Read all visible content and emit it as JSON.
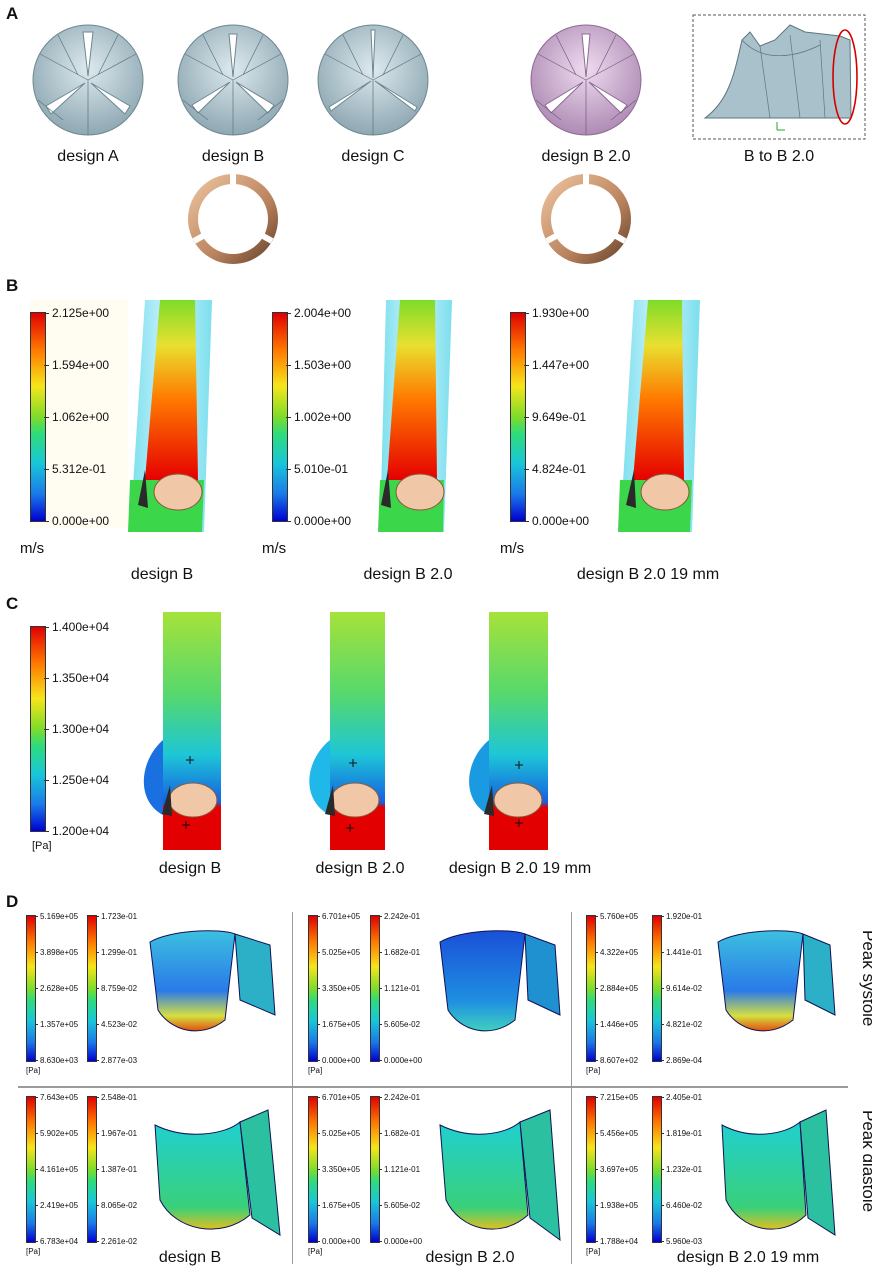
{
  "panel_a": {
    "letter": "A",
    "designs": [
      "design A",
      "design B",
      "design C",
      "design B 2.0",
      "B to B 2.0"
    ]
  },
  "panel_b": {
    "letter": "B",
    "unit": "m/s",
    "scales": [
      [
        "2.125e+00",
        "1.594e+00",
        "1.062e+00",
        "5.312e-01",
        "0.000e+00"
      ],
      [
        "2.004e+00",
        "1.503e+00",
        "1.002e+00",
        "5.010e-01",
        "0.000e+00"
      ],
      [
        "1.930e+00",
        "1.447e+00",
        "9.649e-01",
        "4.824e-01",
        "0.000e+00"
      ]
    ],
    "captions": [
      "design B",
      "design B 2.0",
      "design B 2.0 19 mm"
    ]
  },
  "panel_c": {
    "letter": "C",
    "unit": "[Pa]",
    "scale": [
      "1.400e+04",
      "1.350e+04",
      "1.300e+04",
      "1.250e+04",
      "1.200e+04"
    ],
    "captions": [
      "design B",
      "design B 2.0",
      "design B 2.0 19 mm"
    ]
  },
  "panel_d": {
    "letter": "D",
    "unit": "[Pa]",
    "row_labels": [
      "Peak systole",
      "Peak diastole"
    ],
    "scales": [
      [
        [
          "5.169e+05",
          "3.898e+05",
          "2.628e+05",
          "1.357e+05",
          "8.630e+03"
        ],
        [
          "1.723e-01",
          "1.299e-01",
          "8.759e-02",
          "4.523e-02",
          "2.877e-03"
        ]
      ],
      [
        [
          "6.701e+05",
          "5.025e+05",
          "3.350e+05",
          "1.675e+05",
          "0.000e+00"
        ],
        [
          "2.242e-01",
          "1.682e-01",
          "1.121e-01",
          "5.605e-02",
          "0.000e+00"
        ]
      ],
      [
        [
          "5.760e+05",
          "4.322e+05",
          "2.884e+05",
          "1.446e+05",
          "8.607e+02"
        ],
        [
          "1.920e-01",
          "1.441e-01",
          "9.614e-02",
          "4.821e-02",
          "2.869e-04"
        ]
      ],
      [
        [
          "7.643e+05",
          "5.902e+05",
          "4.161e+05",
          "2.419e+05",
          "6.783e+04"
        ],
        [
          "2.548e-01",
          "1.967e-01",
          "1.387e-01",
          "8.065e-02",
          "2.261e-02"
        ]
      ],
      [
        [
          "6.701e+05",
          "5.025e+05",
          "3.350e+05",
          "1.675e+05",
          "0.000e+00"
        ],
        [
          "2.242e-01",
          "1.682e-01",
          "1.121e-01",
          "5.605e-02",
          "0.000e+00"
        ]
      ],
      [
        [
          "7.215e+05",
          "5.456e+05",
          "3.697e+05",
          "1.938e+05",
          "1.788e+04"
        ],
        [
          "2.405e-01",
          "1.819e-01",
          "1.232e-01",
          "6.460e-02",
          "5.960e-03"
        ]
      ]
    ],
    "captions": [
      "design B",
      "design B 2.0",
      "design B 2.0 19 mm"
    ]
  }
}
